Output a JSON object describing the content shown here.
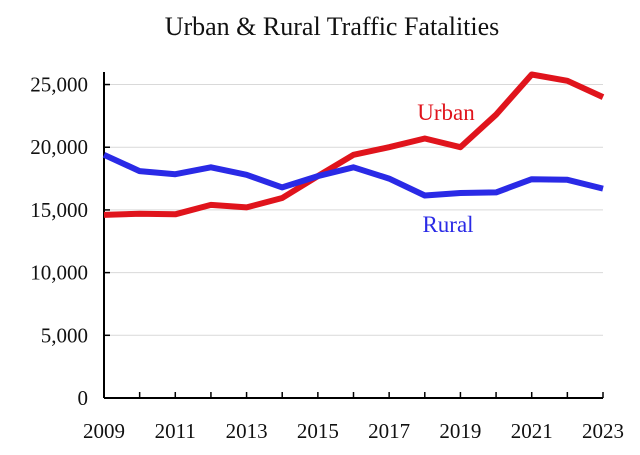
{
  "chart_data": {
    "type": "line",
    "title": "Urban & Rural Traffic Fatalities",
    "xlabel": "",
    "ylabel": "",
    "x": [
      2009,
      2010,
      2011,
      2012,
      2013,
      2014,
      2015,
      2016,
      2017,
      2018,
      2019,
      2020,
      2021,
      2022,
      2023
    ],
    "x_tick_labels": [
      "2009",
      "2011",
      "2013",
      "2015",
      "2017",
      "2019",
      "2021",
      "2023"
    ],
    "y_tick_labels": [
      "0",
      "5,000",
      "10,000",
      "15,000",
      "20,000",
      "25,000"
    ],
    "y_ticks": [
      0,
      5000,
      10000,
      15000,
      20000,
      25000
    ],
    "xlim": [
      2009,
      2023
    ],
    "ylim": [
      0,
      26000
    ],
    "grid": true,
    "legend": "none (series labeled directly on chart)",
    "series": [
      {
        "name": "Urban",
        "color": "#e0141c",
        "values": [
          14600,
          14700,
          14650,
          15400,
          15200,
          15950,
          17700,
          19400,
          20000,
          20700,
          20000,
          22600,
          25800,
          25300,
          24000
        ]
      },
      {
        "name": "Rural",
        "color": "#2a2ae6",
        "values": [
          19400,
          18100,
          17850,
          18400,
          17800,
          16800,
          17700,
          18400,
          17500,
          16150,
          16350,
          16400,
          17450,
          17400,
          16700
        ]
      }
    ]
  }
}
